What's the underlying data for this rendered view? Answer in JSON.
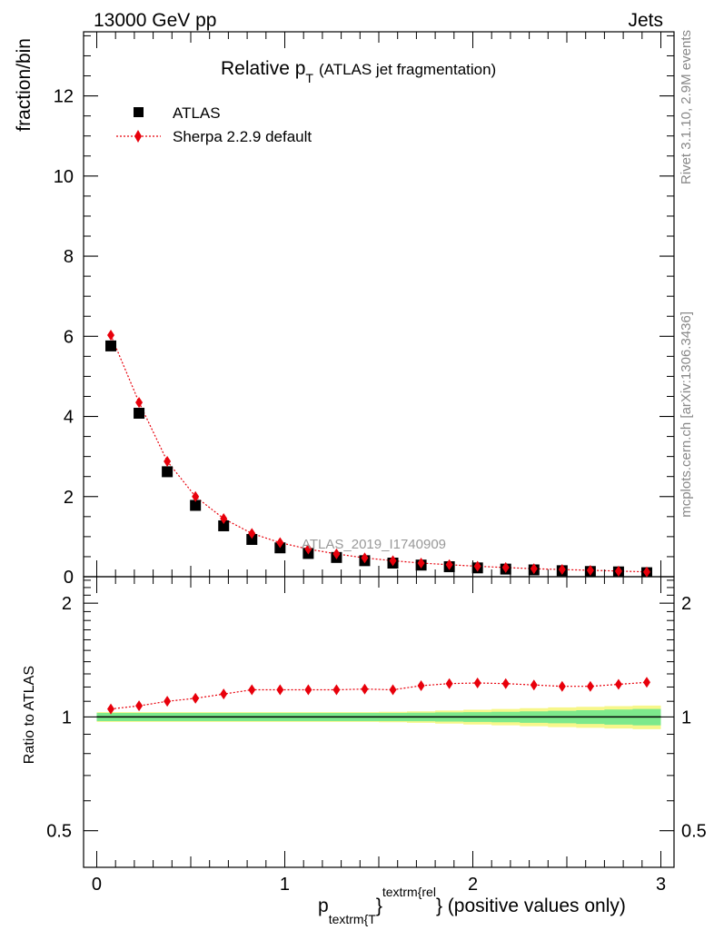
{
  "header": {
    "left_label": "13000 GeV pp",
    "right_label": "Jets"
  },
  "side_labels": {
    "rivet": "Rivet 3.1.10,  2.9M events",
    "source": "mcplots.cern.ch [arXiv:1306.3436]"
  },
  "watermark": "ATLAS_2019_I1740909",
  "colors": {
    "data": "#000000",
    "mc": "#e8000b",
    "band_inner": "#7de98c",
    "band_outer": "#f7f78a"
  },
  "chart_data": [
    {
      "type": "scatter",
      "title": "Relative p",
      "title_sub": "T",
      "title_paren": "(ATLAS jet fragmentation)",
      "ylabel": "fraction/bin",
      "xlim": [
        -0.07,
        3.07
      ],
      "ylim": [
        0,
        13.6
      ],
      "grid": false,
      "legend_position": "top-left",
      "y_ticks": [
        0,
        2,
        4,
        6,
        8,
        10,
        12
      ],
      "x": [
        0.075,
        0.225,
        0.375,
        0.525,
        0.675,
        0.825,
        0.975,
        1.125,
        1.275,
        1.425,
        1.575,
        1.725,
        1.875,
        2.025,
        2.175,
        2.325,
        2.475,
        2.625,
        2.775,
        2.925
      ],
      "series": [
        {
          "name": "ATLAS",
          "marker": "square",
          "values": [
            5.76,
            4.08,
            2.62,
            1.78,
            1.27,
            0.93,
            0.72,
            0.58,
            0.48,
            0.4,
            0.34,
            0.29,
            0.25,
            0.22,
            0.19,
            0.17,
            0.15,
            0.13,
            0.12,
            0.1
          ]
        },
        {
          "name": "Sherpa 2.2.9 default",
          "marker": "diamond",
          "line": "dotted",
          "values": [
            6.03,
            4.35,
            2.88,
            2.0,
            1.45,
            1.08,
            0.85,
            0.69,
            0.57,
            0.47,
            0.4,
            0.34,
            0.3,
            0.26,
            0.23,
            0.2,
            0.18,
            0.16,
            0.14,
            0.12
          ]
        }
      ]
    },
    {
      "type": "line",
      "ylabel": "Ratio to ATLAS",
      "xlabel_main": "p",
      "xlabel_sub": "textrm{T",
      "xlabel_sup": "textrm{rel",
      "xlabel_tail": "} (positive values only)",
      "xlabel_brace": "}",
      "xlim": [
        -0.07,
        3.07
      ],
      "ylim": [
        0.4,
        2.35
      ],
      "scale": "log",
      "grid": false,
      "x_ticks": [
        0,
        1,
        2,
        3
      ],
      "y_ticks": [
        0.5,
        1,
        2
      ],
      "y_tick_labels": [
        "0.5",
        "1",
        "2"
      ],
      "x": [
        0.075,
        0.225,
        0.375,
        0.525,
        0.675,
        0.825,
        0.975,
        1.125,
        1.275,
        1.425,
        1.575,
        1.725,
        1.875,
        2.025,
        2.175,
        2.325,
        2.475,
        2.625,
        2.775,
        2.925
      ],
      "series": [
        {
          "name": "Sherpa 2.2.9 default",
          "values": [
            1.05,
            1.07,
            1.1,
            1.12,
            1.15,
            1.18,
            1.18,
            1.18,
            1.18,
            1.185,
            1.18,
            1.21,
            1.225,
            1.23,
            1.225,
            1.215,
            1.205,
            1.205,
            1.22,
            1.235
          ]
        }
      ],
      "band_inner": [
        0.025,
        0.025,
        0.025,
        0.025,
        0.025,
        0.025,
        0.025,
        0.025,
        0.025,
        0.025,
        0.025,
        0.026,
        0.028,
        0.03,
        0.032,
        0.035,
        0.038,
        0.042,
        0.046,
        0.05
      ],
      "band_outer": [
        0.03,
        0.03,
        0.03,
        0.03,
        0.03,
        0.03,
        0.03,
        0.03,
        0.03,
        0.03,
        0.032,
        0.035,
        0.04,
        0.045,
        0.05,
        0.055,
        0.06,
        0.064,
        0.068,
        0.072
      ]
    }
  ]
}
